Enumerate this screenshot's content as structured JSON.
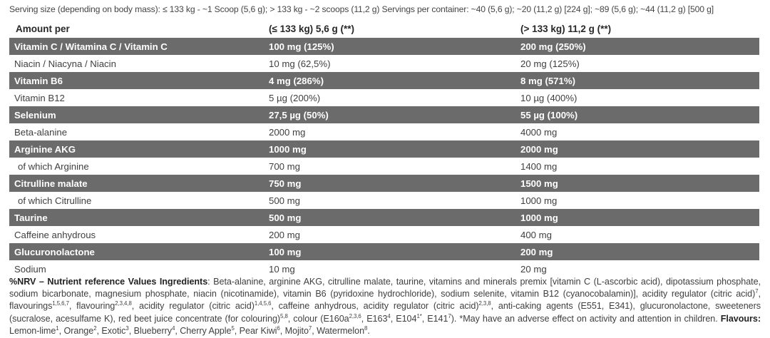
{
  "colors": {
    "page_bg": "#ffffff",
    "dark_row_bg": "#6b6b6b",
    "dark_row_text": "#ffffff",
    "light_row_text": "#3f3f3f",
    "heading_text": "#272727"
  },
  "serving_line": "Serving size (depending on body mass): ≤ 133 kg - ~1 Scoop (5,6 g); > 133 kg - ~2 scoops (11,2 g) Servings per container: ~40 (5,6 g); ~20 (11,2 g) [224 g]; ~89 (5,6 g); ~44 (11,2 g) [500 g]",
  "table": {
    "header": {
      "col1": "Amount per",
      "col2": "(≤ 133 kg) 5,6 g (**)",
      "col3": "(> 133 kg) 11,2 g (**)"
    },
    "rows": [
      {
        "name": "Vitamin C / Witamina C / Vitamin C",
        "per_small": "100 mg (125%)",
        "per_large": "200 mg (250%)",
        "dark": true,
        "indent": false
      },
      {
        "name": "Niacin / Niacyna / Niacin",
        "per_small": "10 mg (62,5%)",
        "per_large": "20 mg (125%)",
        "dark": false,
        "indent": false
      },
      {
        "name": "Vitamin B6",
        "per_small": "4 mg (286%)",
        "per_large": "8 mg (571%)",
        "dark": true,
        "indent": false
      },
      {
        "name": "Vitamin B12",
        "per_small": "5 µg (200%)",
        "per_large": "10 µg (400%)",
        "dark": false,
        "indent": false
      },
      {
        "name": "Selenium",
        "per_small": "27,5 µg (50%)",
        "per_large": "55 µg (100%)",
        "dark": true,
        "indent": false
      },
      {
        "name": "Beta-alanine",
        "per_small": "2000 mg",
        "per_large": "4000 mg",
        "dark": false,
        "indent": false
      },
      {
        "name": "Arginine AKG",
        "per_small": "1000 mg",
        "per_large": "2000 mg",
        "dark": true,
        "indent": false
      },
      {
        "name": "of which Arginine",
        "per_small": "700 mg",
        "per_large": "1400 mg",
        "dark": false,
        "indent": true
      },
      {
        "name": "Citrulline malate",
        "per_small": "750 mg",
        "per_large": "1500 mg",
        "dark": true,
        "indent": false
      },
      {
        "name": "of which Citrulline",
        "per_small": "500 mg",
        "per_large": "1000 mg",
        "dark": false,
        "indent": true
      },
      {
        "name": "Taurine",
        "per_small": "500 mg",
        "per_large": "1000 mg",
        "dark": true,
        "indent": false
      },
      {
        "name": "Caffeine anhydrous",
        "per_small": "200 mg",
        "per_large": "400 mg",
        "dark": false,
        "indent": false
      },
      {
        "name": "Glucuronolactone",
        "per_small": "100 mg",
        "per_large": "200 mg",
        "dark": true,
        "indent": false
      },
      {
        "name": "Sodium",
        "per_small": "10 mg",
        "per_large": "20 mg",
        "dark": false,
        "indent": false
      }
    ]
  },
  "footer": {
    "segments": [
      {
        "t": "%NRV – Nutrient reference Values Ingredients",
        "b": true
      },
      {
        "t": ": Beta-alanine, arginine AKG, citrulline malate, taurine, vitamins and minerals premix [vitamin C (L-ascorbic acid), dipotassium phosphate, sodium bicarbonate, magnesium phosphate, niacin (nicotinamide), vitamin B6 (pyridoxine hydrochloride), sodium selenite, vitamin B12 (cyanocobalamin)], acidity regulator (citric acid)"
      },
      {
        "t": "7",
        "sup": true
      },
      {
        "t": ", flavourings"
      },
      {
        "t": "1,5,6,7",
        "sup": true
      },
      {
        "t": ", flavouring"
      },
      {
        "t": "2,3,4,8",
        "sup": true
      },
      {
        "t": ", acidity regulator (citric acid)"
      },
      {
        "t": "1,4,5,6",
        "sup": true
      },
      {
        "t": ", caffeine anhydrous, acidity regulator (citric acid)"
      },
      {
        "t": "2,3,8",
        "sup": true
      },
      {
        "t": ", anti-caking agents (E551, E341), glucuronolactone, sweeteners (sucralose, acesulfame K), red beet juice concentrate (for colouring)"
      },
      {
        "t": "5,8",
        "sup": true
      },
      {
        "t": ", colour (E160a"
      },
      {
        "t": "2,3,6",
        "sup": true
      },
      {
        "t": ", E163"
      },
      {
        "t": "4",
        "sup": true
      },
      {
        "t": ", E104"
      },
      {
        "t": "1*",
        "sup": true
      },
      {
        "t": ", E141"
      },
      {
        "t": "7",
        "sup": true
      },
      {
        "t": "). *May have an adverse effect on activity and attention in children. "
      },
      {
        "t": "Flavours:",
        "b": true
      },
      {
        "t": " Lemon-lime"
      },
      {
        "t": "1",
        "sup": true
      },
      {
        "t": ", Orange"
      },
      {
        "t": "2",
        "sup": true
      },
      {
        "t": ", Exotic"
      },
      {
        "t": "3",
        "sup": true
      },
      {
        "t": ", Blueberry"
      },
      {
        "t": "4",
        "sup": true
      },
      {
        "t": ", Cherry Apple"
      },
      {
        "t": "5",
        "sup": true
      },
      {
        "t": ", Pear Kiwi"
      },
      {
        "t": "6",
        "sup": true
      },
      {
        "t": ", Mojito"
      },
      {
        "t": "7",
        "sup": true
      },
      {
        "t": ", Watermelon"
      },
      {
        "t": "8",
        "sup": true
      },
      {
        "t": "."
      }
    ]
  }
}
